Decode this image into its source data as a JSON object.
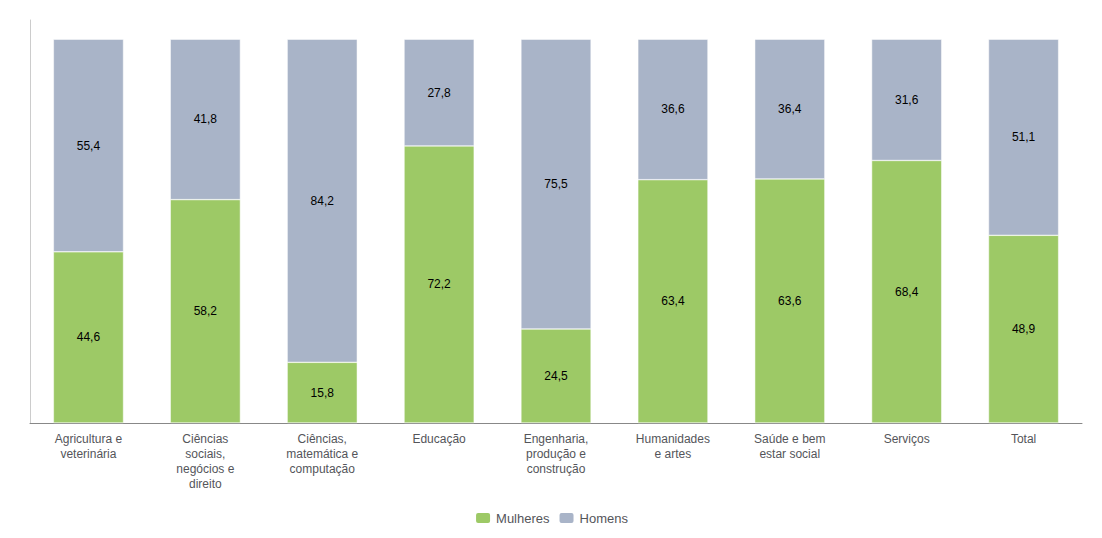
{
  "chart_data": {
    "type": "bar",
    "categories": [
      "Agricultura e\nveterinária",
      "Ciências\nsociais,\nnegócios e\ndireito",
      "Ciências,\nmatemática e\ncomputação",
      "Educação",
      "Engenharia,\nprodução e\nconstrução",
      "Humanidades\ne artes",
      "Saúde e bem\nestar social",
      "Serviços",
      "Total"
    ],
    "series": [
      {
        "name": "Mulheres",
        "color": "#9DC966",
        "values": [
          44.6,
          58.2,
          15.8,
          72.2,
          24.5,
          63.4,
          63.6,
          68.4,
          48.9
        ],
        "value_labels": [
          "44,6",
          "58,2",
          "15,8",
          "72,2",
          "24,5",
          "63,4",
          "63,6",
          "68,4",
          "48,9"
        ]
      },
      {
        "name": "Homens",
        "color": "#A9B4C8",
        "values": [
          55.4,
          41.8,
          84.2,
          27.8,
          75.5,
          36.6,
          36.4,
          31.6,
          51.1
        ],
        "value_labels": [
          "55,4",
          "41,8",
          "84,2",
          "27,8",
          "75,5",
          "36,6",
          "36,4",
          "31,6",
          "51,1"
        ]
      }
    ],
    "ylim": [
      0,
      105
    ],
    "stacked": true,
    "data_labels": true,
    "tick_labels": "x",
    "grid": false,
    "legend": "bottom"
  }
}
